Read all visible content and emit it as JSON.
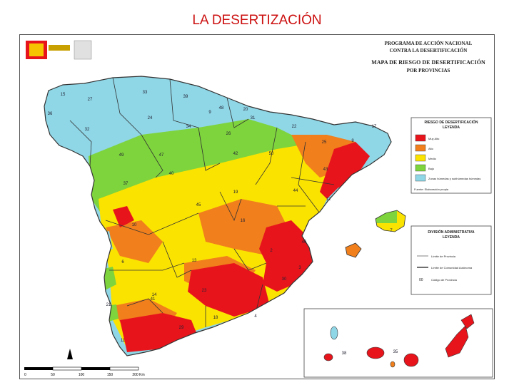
{
  "slide": {
    "title": "LA DESERTIZACIÓN"
  },
  "map_header": {
    "program_line1": "PROGRAMA DE ACCIÓN NACIONAL",
    "program_line2": "CONTRA LA DESERTIFICACIÓN",
    "map_title_line1": "MAPA DE RIESGO DE DESERTIFICACIÓN",
    "map_title_line2": "POR PROVINCIAS"
  },
  "legend_risk": {
    "title_line1": "RIESGO DE DESERTIFICACIÓN",
    "title_line2": "LEYENDA",
    "items": [
      {
        "label": "Muy Alto",
        "color": "#e8141c"
      },
      {
        "label": "Alto",
        "color": "#f07f1c"
      },
      {
        "label": "Medio",
        "color": "#fbe300"
      },
      {
        "label": "Bajo",
        "color": "#7ed43c"
      },
      {
        "label": "Zonas húmedas y subhúmedas húmedas",
        "color": "#8fd6e6"
      }
    ],
    "footnote": "Fuente: Elaboración propia"
  },
  "legend_admin": {
    "title_line1": "DIVISIÓN ADMINISTRATIVA",
    "title_line2": "LEYENDA",
    "items": [
      {
        "label": "Límite de Provincia"
      },
      {
        "label": "Límite de Comunidad Autónoma"
      },
      {
        "label": "Código de Provincia"
      }
    ]
  },
  "province_codes": [
    "15",
    "27",
    "33",
    "39",
    "48",
    "20",
    "36",
    "32",
    "24",
    "34",
    "9",
    "26",
    "31",
    "22",
    "17",
    "8",
    "25",
    "43",
    "47",
    "42",
    "50",
    "49",
    "37",
    "40",
    "19",
    "44",
    "12",
    "45",
    "16",
    "10",
    "6",
    "46",
    "13",
    "2",
    "3",
    "30",
    "21",
    "41",
    "14",
    "23",
    "4",
    "18",
    "29",
    "11",
    "7",
    "35",
    "38"
  ],
  "scale_bar": {
    "ticks": [
      "0",
      "50",
      "100",
      "150",
      "200 Km"
    ]
  },
  "colors": {
    "very_high": "#e8141c",
    "high": "#f07f1c",
    "medium": "#fbe300",
    "low": "#7ed43c",
    "humid": "#8fd6e6",
    "title": "#cc1010"
  }
}
